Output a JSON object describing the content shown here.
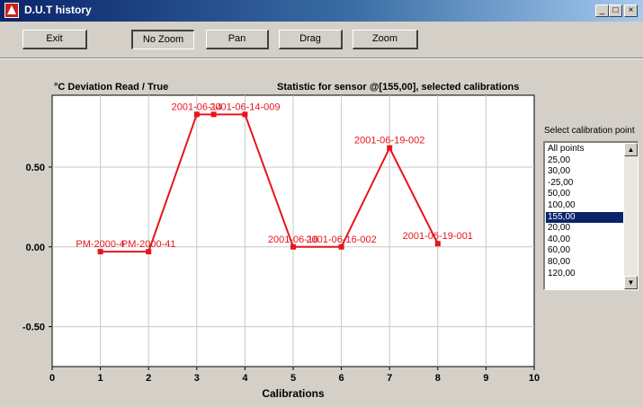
{
  "window": {
    "title": "D.U.T history",
    "controls": {
      "minimize": "_",
      "maximize": "□",
      "close": "×"
    }
  },
  "toolbar": {
    "exit_label": "Exit",
    "nozoom_label": "No Zoom",
    "pan_label": "Pan",
    "drag_label": "Drag",
    "zoom_label": "Zoom"
  },
  "chart": {
    "title_left": "°C Deviation Read / True",
    "title_right": "Statistic for sensor @[155,00], selected calibrations"
  },
  "chart_data": {
    "type": "line",
    "xlabel": "Calibrations",
    "ylabel": "",
    "xlim": [
      0,
      10
    ],
    "ylim": [
      -0.75,
      0.95
    ],
    "x_ticks": [
      "0",
      "1",
      "2",
      "3",
      "4",
      "5",
      "6",
      "7",
      "8",
      "9",
      "10"
    ],
    "y_ticks": [
      {
        "value": 0.5,
        "label": "0.50"
      },
      {
        "value": 0.0,
        "label": "0.00"
      },
      {
        "value": -0.5,
        "label": "-0.50"
      }
    ],
    "grid": true,
    "color": "#e8141c",
    "points": [
      {
        "x": 1,
        "y": -0.03,
        "label": "PM-2000-4"
      },
      {
        "x": 2,
        "y": -0.03,
        "label": "PM-2000-41"
      },
      {
        "x": 3,
        "y": 0.83,
        "label": "2001-06-14"
      },
      {
        "x": 3.35,
        "y": 0.83,
        "label": ""
      },
      {
        "x": 4,
        "y": 0.83,
        "label": "2001-06-14-009"
      },
      {
        "x": 5,
        "y": 0.0,
        "label": "2001-06-16"
      },
      {
        "x": 6,
        "y": 0.0,
        "label": "2001-06-16-002"
      },
      {
        "x": 7,
        "y": 0.62,
        "label": "2001-06-19-002"
      },
      {
        "x": 8,
        "y": 0.02,
        "label": "2001-06-19-001"
      }
    ]
  },
  "calibration": {
    "label": "Select calibration point",
    "items": [
      "All points",
      "25,00",
      "30,00",
      "-25,00",
      "50,00",
      "100,00",
      "155,00",
      "20,00",
      "40,00",
      "60,00",
      "80,00",
      "120,00"
    ],
    "selected": "155,00"
  }
}
